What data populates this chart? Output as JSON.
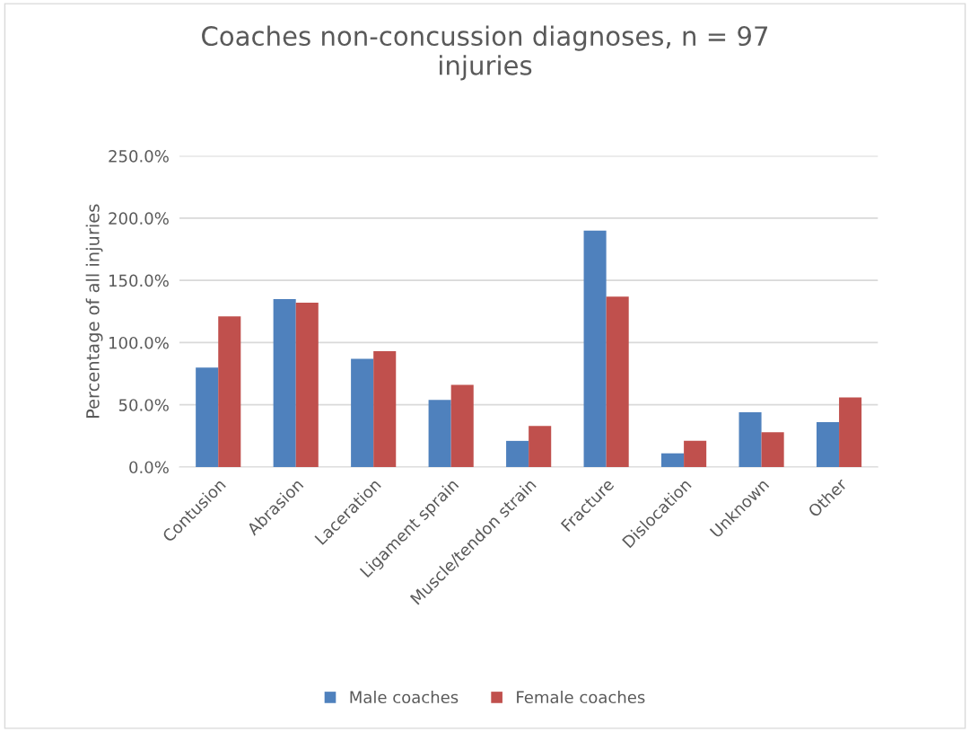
{
  "chart_data": {
    "type": "bar",
    "title": "Coaches non-concussion diagnoses, n = 97\ninjuries",
    "ylabel": "Percentage of all injuries",
    "categories": [
      "Contusion",
      "Abrasion",
      "Laceration",
      "Ligament sprain",
      "Muscle/tendon strain",
      "Fracture",
      "Dislocation",
      "Unknown",
      "Other"
    ],
    "series": [
      {
        "name": "Male coaches",
        "color": "#4f81bd",
        "values": [
          80,
          135,
          87,
          54,
          21,
          190,
          11,
          44,
          36
        ]
      },
      {
        "name": "Female coaches",
        "color": "#c0504d",
        "values": [
          121,
          132,
          93,
          66,
          33,
          137,
          21,
          28,
          56
        ]
      }
    ],
    "ylim": [
      0,
      250
    ],
    "yticks": [
      {
        "value": 0,
        "label": "0.0%"
      },
      {
        "value": 50,
        "label": "50.0%"
      },
      {
        "value": 100,
        "label": "100.0%"
      },
      {
        "value": 150,
        "label": "150.0%"
      },
      {
        "value": 200,
        "label": "200.0%"
      },
      {
        "value": 250,
        "label": "250.0%"
      }
    ],
    "grid": "y",
    "legend": "bottom"
  }
}
